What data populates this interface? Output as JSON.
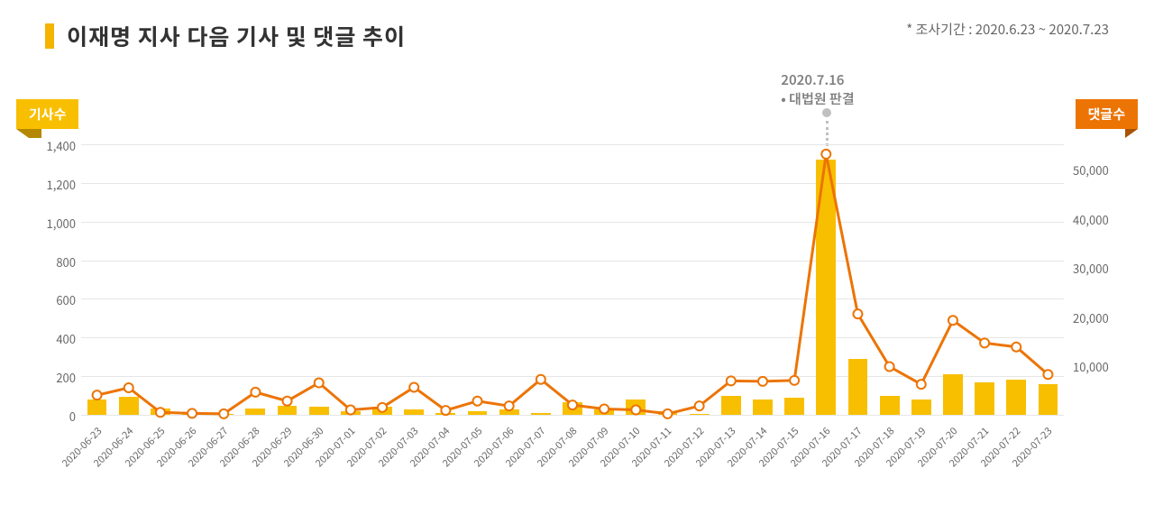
{
  "header": {
    "title": "이재명 지사 다음 기사 및 댓글 추이",
    "period_label": "* 조사기간 : 2020.6.23 ~ 2020.7.23"
  },
  "badges": {
    "left": "기사수",
    "right": "댓글수"
  },
  "annotation": {
    "date": "2020.7.16",
    "text": "• 대법원 판결",
    "target_index": 23
  },
  "chart": {
    "type": "bar+line-dual-axis",
    "background_color": "#ffffff",
    "grid_color": "#e6e6e6",
    "bar_color": "#f8bf00",
    "line_color": "#ec7404",
    "marker_fill": "#ffffff",
    "marker_stroke": "#ec7404",
    "marker_radius": 5,
    "line_width": 3,
    "bar_width_ratio": 0.62,
    "axis_font_size": 13,
    "xlabel_font_size": 11,
    "axis_color": "#666666",
    "left_axis": {
      "min": 0,
      "max": 1400,
      "step": 200
    },
    "right_axis": {
      "min": 0,
      "max": 55000,
      "step": 10000,
      "first_tick": 10000
    },
    "categories": [
      "2020-06-23",
      "2020-06-24",
      "2020-06-25",
      "2020-06-26",
      "2020-06-27",
      "2020-06-28",
      "2020-06-29",
      "2020-06-30",
      "2020-07-01",
      "2020-07-02",
      "2020-07-03",
      "2020-07-04",
      "2020-07-05",
      "2020-07-06",
      "2020-07-07",
      "2020-07-08",
      "2020-07-09",
      "2020-07-10",
      "2020-07-11",
      "2020-07-12",
      "2020-07-13",
      "2020-07-14",
      "2020-07-15",
      "2020-07-16",
      "2020-07-17",
      "2020-07-18",
      "2020-07-19",
      "2020-07-20",
      "2020-07-21",
      "2020-07-22",
      "2020-07-23"
    ],
    "bars": [
      80,
      95,
      35,
      10,
      5,
      35,
      45,
      40,
      20,
      40,
      30,
      10,
      20,
      30,
      10,
      65,
      30,
      80,
      20,
      5,
      100,
      80,
      90,
      1320,
      290,
      100,
      80,
      210,
      170,
      180,
      160
    ],
    "line": [
      4000,
      5500,
      500,
      300,
      200,
      4600,
      2800,
      6500,
      1000,
      1500,
      5600,
      900,
      2800,
      1800,
      7200,
      2000,
      1200,
      1000,
      200,
      1800,
      6900,
      6800,
      7000,
      53000,
      20500,
      9800,
      6200,
      19200,
      14600,
      13800,
      8200
    ]
  }
}
